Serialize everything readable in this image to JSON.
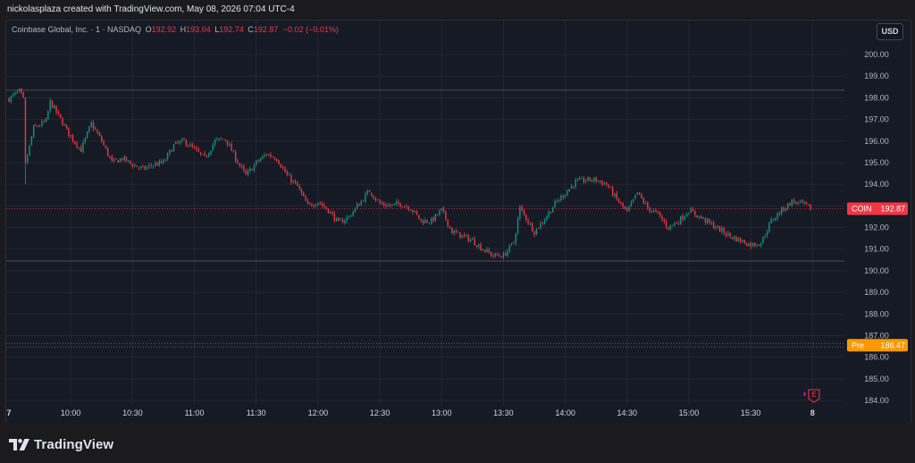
{
  "credit": "nickolasplaza created with TradingView.com, May 08, 2026 07:04 UTC-4",
  "legend": {
    "symbol_text": "Coinbase Global, Inc. · 1 · NASDAQ",
    "o_key": "O",
    "o_val": "192.92",
    "h_key": "H",
    "h_val": "193.04",
    "l_key": "L",
    "l_val": "192.74",
    "c_key": "C",
    "c_val": "192.87",
    "change": "−0.02 (−0.01%)"
  },
  "currency_button": "USD",
  "price_tags": {
    "coin_label": "COIN",
    "coin_value": "192.87",
    "coin_color": "#f23645",
    "pre_label": "Pre",
    "pre_value": "186.47",
    "pre_color": "#ff9800"
  },
  "earnings_marker": "E",
  "brand": "TradingView",
  "colors": {
    "up": "#089981",
    "down": "#f23645",
    "background": "#161a25"
  },
  "chart_data": {
    "type": "candlestick",
    "symbol": "COIN",
    "exchange": "NASDAQ",
    "interval": "1",
    "x_tick_labels": [
      "7",
      "10:00",
      "10:30",
      "11:00",
      "11:30",
      "12:00",
      "12:30",
      "13:00",
      "13:30",
      "14:00",
      "14:30",
      "15:00",
      "15:30",
      "8"
    ],
    "y_tick_labels": [
      "200.00",
      "199.00",
      "198.00",
      "197.00",
      "196.00",
      "195.00",
      "194.00",
      "193.00",
      "192.00",
      "191.00",
      "190.00",
      "189.00",
      "188.00",
      "187.00",
      "186.00",
      "185.00",
      "184.00"
    ],
    "ylim": [
      183.6,
      201.0
    ],
    "last_price": 192.87,
    "premarket_price": 186.47,
    "session_high_line": 198.35,
    "session_low_line": 190.45,
    "anchors": [
      [
        "09:30",
        197.95
      ],
      [
        "09:35",
        198.3
      ],
      [
        "09:37",
        197.9
      ],
      [
        "09:38",
        194.9
      ],
      [
        "09:42",
        196.6
      ],
      [
        "09:48",
        196.9
      ],
      [
        "09:50",
        197.8
      ],
      [
        "09:55",
        197.0
      ],
      [
        "10:00",
        196.2
      ],
      [
        "10:05",
        195.6
      ],
      [
        "10:10",
        196.8
      ],
      [
        "10:15",
        196.0
      ],
      [
        "10:20",
        195.0
      ],
      [
        "10:25",
        195.2
      ],
      [
        "10:30",
        194.9
      ],
      [
        "10:35",
        194.7
      ],
      [
        "10:40",
        194.9
      ],
      [
        "10:45",
        195.0
      ],
      [
        "10:50",
        195.8
      ],
      [
        "10:55",
        196.0
      ],
      [
        "11:00",
        195.6
      ],
      [
        "11:05",
        195.2
      ],
      [
        "11:10",
        196.0
      ],
      [
        "11:15",
        196.1
      ],
      [
        "11:20",
        195.2
      ],
      [
        "11:25",
        194.4
      ],
      [
        "11:30",
        195.0
      ],
      [
        "11:35",
        195.4
      ],
      [
        "11:40",
        195.2
      ],
      [
        "11:45",
        194.4
      ],
      [
        "11:50",
        193.9
      ],
      [
        "11:55",
        193.0
      ],
      [
        "12:00",
        193.2
      ],
      [
        "12:05",
        192.8
      ],
      [
        "12:10",
        192.2
      ],
      [
        "12:15",
        192.5
      ],
      [
        "12:20",
        193.1
      ],
      [
        "12:25",
        193.7
      ],
      [
        "12:30",
        193.1
      ],
      [
        "12:35",
        193.0
      ],
      [
        "12:40",
        193.1
      ],
      [
        "12:45",
        192.9
      ],
      [
        "12:50",
        192.3
      ],
      [
        "12:55",
        192.3
      ],
      [
        "13:00",
        192.8
      ],
      [
        "13:05",
        191.8
      ],
      [
        "13:10",
        191.6
      ],
      [
        "13:15",
        191.4
      ],
      [
        "13:20",
        191.0
      ],
      [
        "13:25",
        190.7
      ],
      [
        "13:30",
        190.7
      ],
      [
        "13:35",
        191.3
      ],
      [
        "13:38",
        192.9
      ],
      [
        "13:45",
        191.8
      ],
      [
        "13:50",
        192.4
      ],
      [
        "13:55",
        193.1
      ],
      [
        "14:00",
        193.6
      ],
      [
        "14:05",
        194.1
      ],
      [
        "14:10",
        194.2
      ],
      [
        "14:15",
        194.2
      ],
      [
        "14:20",
        194.0
      ],
      [
        "14:25",
        193.3
      ],
      [
        "14:30",
        192.7
      ],
      [
        "14:35",
        193.6
      ],
      [
        "14:40",
        192.9
      ],
      [
        "14:45",
        192.6
      ],
      [
        "14:50",
        192.0
      ],
      [
        "14:55",
        192.3
      ],
      [
        "15:00",
        192.8
      ],
      [
        "15:05",
        192.5
      ],
      [
        "15:10",
        192.2
      ],
      [
        "15:15",
        191.9
      ],
      [
        "15:20",
        191.6
      ],
      [
        "15:25",
        191.4
      ],
      [
        "15:30",
        191.2
      ],
      [
        "15:35",
        191.3
      ],
      [
        "15:40",
        192.3
      ],
      [
        "15:45",
        192.8
      ],
      [
        "15:50",
        193.2
      ],
      [
        "15:55",
        193.1
      ],
      [
        "15:59",
        192.87
      ]
    ]
  }
}
